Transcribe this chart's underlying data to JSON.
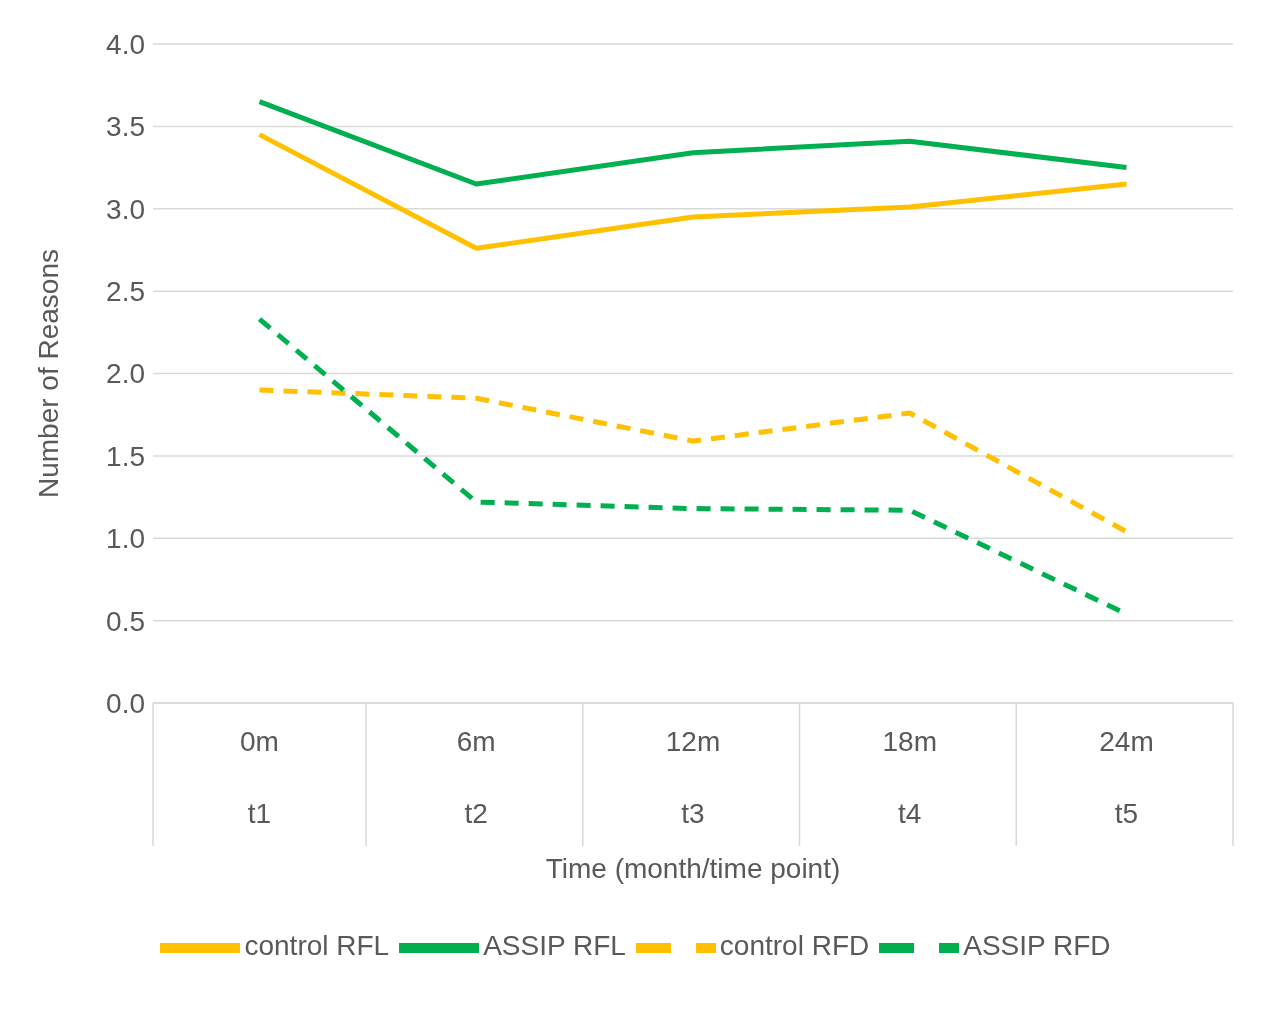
{
  "chart_data": {
    "type": "line",
    "xlabel": "Time (month/time point)",
    "ylabel": "Number of Reasons",
    "categories": [
      "0m\nt1",
      "6m\nt2",
      "12m\nt3",
      "18m\nt4",
      "24m\nt5"
    ],
    "series": [
      {
        "name": "control RFL",
        "color": "#ffc000",
        "line_style": "solid",
        "values": [
          3.45,
          2.76,
          2.95,
          3.01,
          3.15
        ]
      },
      {
        "name": "ASSIP RFL",
        "color": "#00b050",
        "line_style": "solid",
        "values": [
          3.65,
          3.15,
          3.34,
          3.41,
          3.25
        ]
      },
      {
        "name": "control RFD",
        "color": "#ffc000",
        "line_style": "dashed",
        "values": [
          1.9,
          1.85,
          1.59,
          1.76,
          1.04
        ]
      },
      {
        "name": "ASSIP RFD",
        "color": "#00b050",
        "line_style": "dashed",
        "values": [
          2.33,
          1.22,
          1.18,
          1.17,
          0.54
        ]
      }
    ],
    "ylim": [
      0,
      4
    ],
    "yticks": [
      {
        "value": 0,
        "label": "0.0"
      },
      {
        "value": 0.5,
        "label": "0.5"
      },
      {
        "value": 1,
        "label": "1.0"
      },
      {
        "value": 1.5,
        "label": "1.5"
      },
      {
        "value": 2,
        "label": "2.0"
      },
      {
        "value": 2.5,
        "label": "2.5"
      },
      {
        "value": 3,
        "label": "3.0"
      },
      {
        "value": 3.5,
        "label": "3.5"
      },
      {
        "value": 4,
        "label": "4.0"
      }
    ],
    "grid": "y",
    "legend": "bottom",
    "marker": "none"
  }
}
